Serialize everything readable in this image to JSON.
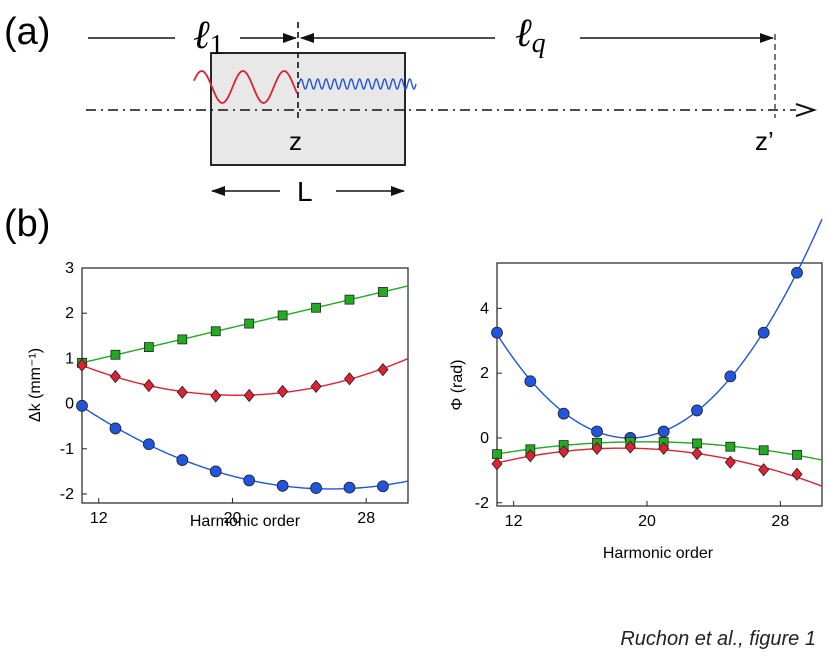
{
  "panel_a": {
    "label": "(a)",
    "l1_symbol": "ℓ",
    "l1_sub": "1",
    "lq_symbol": "ℓ",
    "lq_sub": "q",
    "z_label": "z",
    "zprime_label": "z’",
    "L_label": "L"
  },
  "panel_b": {
    "label": "(b)"
  },
  "colors": {
    "green": "#22aa22",
    "red": "#dd2233",
    "blue": "#2255dd"
  },
  "credit": "Ruchon et al., figure 1",
  "chart_data": [
    {
      "type": "scatter",
      "title": "",
      "xlabel": "Harmonic order",
      "ylabel": "Δk (mm⁻¹)",
      "xlim": [
        11,
        30.5
      ],
      "ylim": [
        -2.2,
        3
      ],
      "xticks": [
        12,
        20,
        28
      ],
      "xtick_labels": [
        "12",
        "20",
        "28"
      ],
      "yticks": [
        -2,
        -1,
        0,
        1,
        2,
        3
      ],
      "ytick_labels": [
        "-2",
        "-1",
        "0",
        "1",
        "2",
        "3"
      ],
      "x": [
        11,
        13,
        15,
        17,
        19,
        21,
        23,
        25,
        27,
        29
      ],
      "series": [
        {
          "name": "green",
          "marker": "square",
          "color": "#22aa22",
          "values": [
            0.9,
            1.08,
            1.25,
            1.42,
            1.6,
            1.77,
            1.95,
            2.12,
            2.3,
            2.47
          ]
        },
        {
          "name": "red",
          "marker": "diamond",
          "color": "#dd2233",
          "values": [
            0.85,
            0.6,
            0.4,
            0.25,
            0.17,
            0.18,
            0.27,
            0.38,
            0.55,
            0.75
          ]
        },
        {
          "name": "blue",
          "marker": "circle",
          "color": "#2255dd",
          "values": [
            -0.05,
            -0.55,
            -0.9,
            -1.25,
            -1.5,
            -1.7,
            -1.82,
            -1.87,
            -1.86,
            -1.83
          ]
        }
      ]
    },
    {
      "type": "scatter",
      "title": "",
      "xlabel": "Harmonic order",
      "ylabel": "Φ (rad)",
      "xlim": [
        11,
        30.5
      ],
      "ylim": [
        -2.1,
        5.4
      ],
      "xticks": [
        12,
        20,
        28
      ],
      "xtick_labels": [
        "12",
        "20",
        "28"
      ],
      "yticks": [
        -2,
        0,
        2,
        4
      ],
      "ytick_labels": [
        "-2",
        "0",
        "2",
        "4"
      ],
      "x": [
        11,
        13,
        15,
        17,
        19,
        21,
        23,
        25,
        27,
        29
      ],
      "series": [
        {
          "name": "blue",
          "marker": "circle",
          "color": "#2255dd",
          "values": [
            3.25,
            1.75,
            0.75,
            0.2,
            0.0,
            0.2,
            0.85,
            1.9,
            3.25,
            5.1
          ]
        },
        {
          "name": "green",
          "marker": "square",
          "color": "#22aa22",
          "values": [
            -0.5,
            -0.35,
            -0.22,
            -0.15,
            -0.12,
            -0.12,
            -0.17,
            -0.27,
            -0.38,
            -0.52
          ]
        },
        {
          "name": "red",
          "marker": "diamond",
          "color": "#dd2233",
          "values": [
            -0.8,
            -0.55,
            -0.42,
            -0.32,
            -0.28,
            -0.32,
            -0.48,
            -0.75,
            -0.98,
            -1.12
          ]
        }
      ]
    }
  ]
}
